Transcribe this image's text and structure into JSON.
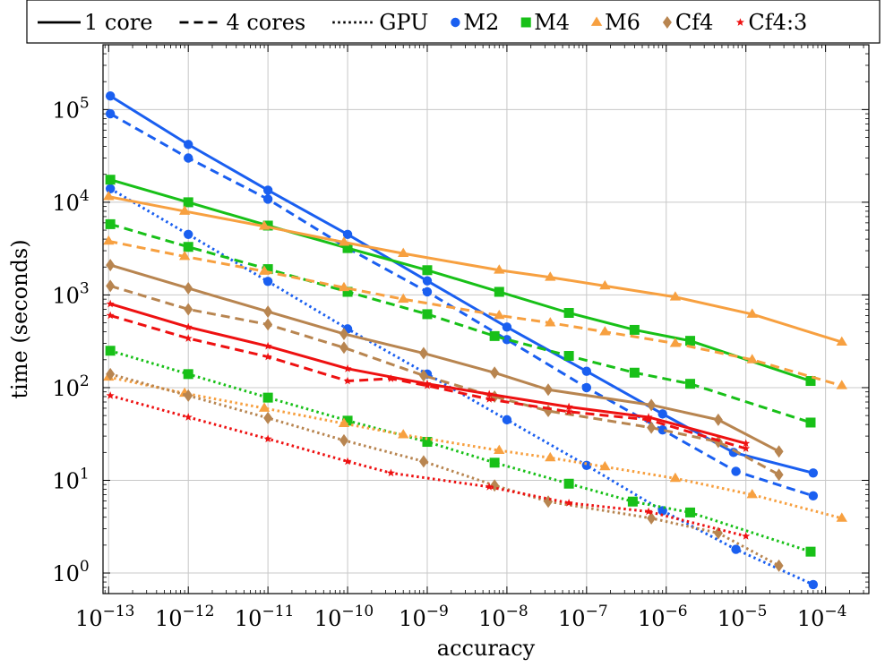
{
  "chart_data": {
    "type": "line",
    "xlabel": "accuracy",
    "ylabel": "time (seconds)",
    "x_scale": "log",
    "y_scale": "log",
    "xlim": [
      8.5e-14,
      0.00035
    ],
    "ylim": [
      0.6,
      500000
    ],
    "grid": true,
    "legend_position": "top",
    "x_ticks": [
      {
        "value": 1e-13,
        "base": "10",
        "exp": "−13"
      },
      {
        "value": 1e-12,
        "base": "10",
        "exp": "−12"
      },
      {
        "value": 1e-11,
        "base": "10",
        "exp": "−11"
      },
      {
        "value": 1e-10,
        "base": "10",
        "exp": "−10"
      },
      {
        "value": 1e-09,
        "base": "10",
        "exp": "−9"
      },
      {
        "value": 1e-08,
        "base": "10",
        "exp": "−8"
      },
      {
        "value": 1e-07,
        "base": "10",
        "exp": "−7"
      },
      {
        "value": 1e-06,
        "base": "10",
        "exp": "−6"
      },
      {
        "value": 1e-05,
        "base": "10",
        "exp": "−5"
      },
      {
        "value": 0.0001,
        "base": "10",
        "exp": "−4"
      }
    ],
    "y_ticks": [
      {
        "value": 1,
        "base": "10",
        "exp": "0"
      },
      {
        "value": 10,
        "base": "10",
        "exp": "1"
      },
      {
        "value": 100,
        "base": "10",
        "exp": "2"
      },
      {
        "value": 1000,
        "base": "10",
        "exp": "3"
      },
      {
        "value": 10000,
        "base": "10",
        "exp": "4"
      },
      {
        "value": 100000,
        "base": "10",
        "exp": "5"
      }
    ],
    "legend": [
      {
        "label": "1 core",
        "kind": "line",
        "dash": "solid"
      },
      {
        "label": "4 cores",
        "kind": "line",
        "dash": "dashed"
      },
      {
        "label": "GPU",
        "kind": "line",
        "dash": "dotted"
      },
      {
        "label": "M2",
        "kind": "marker",
        "marker": "circle",
        "color": "#1a5ff0"
      },
      {
        "label": "M4",
        "kind": "marker",
        "marker": "square",
        "color": "#18c018"
      },
      {
        "label": "M6",
        "kind": "marker",
        "marker": "triangle",
        "color": "#f7a040"
      },
      {
        "label": "Cf4",
        "kind": "marker",
        "marker": "diamond",
        "color": "#b88550"
      },
      {
        "label": "Cf4:3",
        "kind": "marker",
        "marker": "star",
        "color": "#ee1111"
      }
    ],
    "series": [
      {
        "method": "M2",
        "mode": "1 core",
        "color": "#1a5ff0",
        "marker": "circle",
        "dash": "solid",
        "points": [
          [
            1.05e-13,
            140000
          ],
          [
            1e-12,
            42000
          ],
          [
            1e-11,
            13500
          ],
          [
            1e-10,
            4500
          ],
          [
            1e-09,
            1420
          ],
          [
            1e-08,
            450
          ],
          [
            1e-07,
            150
          ],
          [
            9e-07,
            52
          ],
          [
            7e-06,
            20
          ],
          [
            7e-05,
            12
          ]
        ]
      },
      {
        "method": "M2",
        "mode": "4 cores",
        "color": "#1a5ff0",
        "marker": "circle",
        "dash": "dashed",
        "points": [
          [
            1.05e-13,
            90000
          ],
          [
            1e-12,
            30000
          ],
          [
            1e-11,
            10800
          ],
          [
            1e-10,
            3200
          ],
          [
            1e-09,
            1080
          ],
          [
            1e-08,
            330
          ],
          [
            1e-07,
            100
          ],
          [
            9e-07,
            35
          ],
          [
            7.5e-06,
            12.5
          ],
          [
            7e-05,
            6.8
          ]
        ]
      },
      {
        "method": "M2",
        "mode": "GPU",
        "color": "#1a5ff0",
        "marker": "circle",
        "dash": "dotted",
        "points": [
          [
            1.05e-13,
            14000
          ],
          [
            1e-12,
            4500
          ],
          [
            1e-11,
            1400
          ],
          [
            1e-10,
            430
          ],
          [
            1e-09,
            140
          ],
          [
            1e-08,
            45
          ],
          [
            1e-07,
            14.5
          ],
          [
            9e-07,
            4.7
          ],
          [
            7.5e-06,
            1.8
          ],
          [
            7e-05,
            0.75
          ]
        ]
      },
      {
        "method": "M4",
        "mode": "1 core",
        "color": "#18c018",
        "marker": "square",
        "dash": "solid",
        "points": [
          [
            1.05e-13,
            17500
          ],
          [
            1e-12,
            10000
          ],
          [
            1e-11,
            5600
          ],
          [
            1e-10,
            3200
          ],
          [
            1e-09,
            1850
          ],
          [
            8e-09,
            1080
          ],
          [
            6e-08,
            640
          ],
          [
            4e-07,
            420
          ],
          [
            2e-06,
            320
          ],
          [
            6.5e-05,
            118
          ]
        ]
      },
      {
        "method": "M4",
        "mode": "4 cores",
        "color": "#18c018",
        "marker": "square",
        "dash": "dashed",
        "points": [
          [
            1.05e-13,
            5800
          ],
          [
            1e-12,
            3300
          ],
          [
            1e-11,
            1900
          ],
          [
            1e-10,
            1080
          ],
          [
            1e-09,
            620
          ],
          [
            7e-09,
            360
          ],
          [
            6e-08,
            220
          ],
          [
            4e-07,
            145
          ],
          [
            2e-06,
            110
          ],
          [
            6.5e-05,
            42
          ]
        ]
      },
      {
        "method": "M4",
        "mode": "GPU",
        "color": "#18c018",
        "marker": "square",
        "dash": "dotted",
        "points": [
          [
            1.05e-13,
            250
          ],
          [
            1e-12,
            140
          ],
          [
            1e-11,
            78
          ],
          [
            1e-10,
            44
          ],
          [
            1e-09,
            26
          ],
          [
            7e-09,
            15.5
          ],
          [
            6e-08,
            9.2
          ],
          [
            3.8e-07,
            5.9
          ],
          [
            2e-06,
            4.5
          ],
          [
            6.5e-05,
            1.7
          ]
        ]
      },
      {
        "method": "M6",
        "mode": "1 core",
        "color": "#f7a040",
        "marker": "triangle",
        "dash": "solid",
        "points": [
          [
            1e-13,
            11500
          ],
          [
            9e-13,
            8000
          ],
          [
            9e-12,
            5500
          ],
          [
            9e-11,
            3700
          ],
          [
            5e-10,
            2800
          ],
          [
            8e-09,
            1850
          ],
          [
            3.5e-08,
            1550
          ],
          [
            1.7e-07,
            1250
          ],
          [
            1.3e-06,
            950
          ],
          [
            1.2e-05,
            620
          ],
          [
            0.00016,
            310
          ]
        ]
      },
      {
        "method": "M6",
        "mode": "4 cores",
        "color": "#f7a040",
        "marker": "triangle",
        "dash": "dashed",
        "points": [
          [
            1e-13,
            3800
          ],
          [
            9e-13,
            2600
          ],
          [
            9e-12,
            1800
          ],
          [
            9e-11,
            1200
          ],
          [
            5e-10,
            900
          ],
          [
            8e-09,
            600
          ],
          [
            3.5e-08,
            500
          ],
          [
            1.7e-07,
            400
          ],
          [
            1.3e-06,
            300
          ],
          [
            1.2e-05,
            200
          ],
          [
            0.00016,
            105
          ]
        ]
      },
      {
        "method": "M6",
        "mode": "GPU",
        "color": "#f7a040",
        "marker": "triangle",
        "dash": "dotted",
        "points": [
          [
            1e-13,
            130
          ],
          [
            9e-13,
            87
          ],
          [
            9e-12,
            60
          ],
          [
            9e-11,
            41
          ],
          [
            5e-10,
            31
          ],
          [
            8e-09,
            21
          ],
          [
            3.5e-08,
            17.5
          ],
          [
            1.7e-07,
            14
          ],
          [
            1.3e-06,
            10.5
          ],
          [
            1.2e-05,
            7
          ],
          [
            0.00016,
            3.9
          ]
        ]
      },
      {
        "method": "Cf4",
        "mode": "1 core",
        "color": "#b88550",
        "marker": "diamond",
        "dash": "solid",
        "points": [
          [
            1.05e-13,
            2100
          ],
          [
            1e-12,
            1180
          ],
          [
            1e-11,
            660
          ],
          [
            9e-11,
            380
          ],
          [
            9e-10,
            235
          ],
          [
            7e-09,
            145
          ],
          [
            3.3e-08,
            95
          ],
          [
            6.5e-07,
            65
          ],
          [
            4.5e-06,
            45
          ],
          [
            2.6e-05,
            20.5
          ]
        ]
      },
      {
        "method": "Cf4",
        "mode": "4 cores",
        "color": "#b88550",
        "marker": "diamond",
        "dash": "dashed",
        "points": [
          [
            1.05e-13,
            1250
          ],
          [
            1e-12,
            700
          ],
          [
            1e-11,
            480
          ],
          [
            9e-11,
            270
          ],
          [
            9e-10,
            135
          ],
          [
            7e-09,
            80
          ],
          [
            3.3e-08,
            56
          ],
          [
            6.5e-07,
            37
          ],
          [
            4.5e-06,
            26
          ],
          [
            2.6e-05,
            11.5
          ]
        ]
      },
      {
        "method": "Cf4",
        "mode": "GPU",
        "color": "#b88550",
        "marker": "diamond",
        "dash": "dotted",
        "points": [
          [
            1.05e-13,
            140
          ],
          [
            1e-12,
            82
          ],
          [
            1e-11,
            47
          ],
          [
            9e-11,
            27
          ],
          [
            9e-10,
            16
          ],
          [
            7e-09,
            8.8
          ],
          [
            3.3e-08,
            5.9
          ],
          [
            6.5e-07,
            3.9
          ],
          [
            4.5e-06,
            2.7
          ],
          [
            2.6e-05,
            1.2
          ]
        ]
      },
      {
        "method": "Cf4:3",
        "mode": "1 core",
        "color": "#ee1111",
        "marker": "star",
        "dash": "solid",
        "points": [
          [
            1.05e-13,
            800
          ],
          [
            1e-12,
            450
          ],
          [
            1e-11,
            280
          ],
          [
            1e-10,
            160
          ],
          [
            1e-09,
            110
          ],
          [
            6e-09,
            85
          ],
          [
            6e-08,
            62
          ],
          [
            6e-07,
            48
          ],
          [
            1e-05,
            25
          ]
        ]
      },
      {
        "method": "Cf4:3",
        "mode": "4 cores",
        "color": "#ee1111",
        "marker": "star",
        "dash": "dashed",
        "points": [
          [
            1.05e-13,
            600
          ],
          [
            1e-12,
            340
          ],
          [
            1e-11,
            215
          ],
          [
            1e-10,
            118
          ],
          [
            3.5e-10,
            125
          ],
          [
            1e-09,
            105
          ],
          [
            6e-09,
            75
          ],
          [
            6e-08,
            55
          ],
          [
            6e-07,
            45
          ],
          [
            1e-05,
            22
          ]
        ]
      },
      {
        "method": "Cf4:3",
        "mode": "GPU",
        "color": "#ee1111",
        "marker": "star",
        "dash": "dotted",
        "points": [
          [
            1.05e-13,
            82
          ],
          [
            1e-12,
            48
          ],
          [
            1e-11,
            28
          ],
          [
            1e-10,
            16
          ],
          [
            3.5e-10,
            12
          ],
          [
            6e-09,
            8.5
          ],
          [
            6e-08,
            5.7
          ],
          [
            6e-07,
            4.6
          ],
          [
            1e-05,
            2.5
          ]
        ]
      }
    ]
  }
}
